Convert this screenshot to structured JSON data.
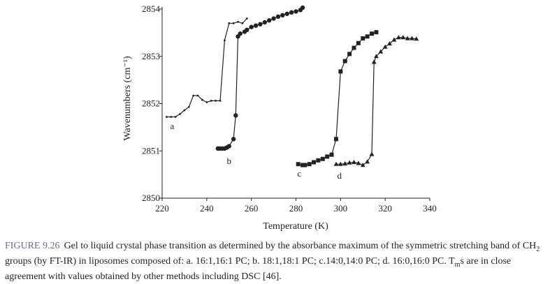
{
  "chart_data": {
    "type": "line",
    "title": "",
    "xlabel": "Temperature (K)",
    "ylabel": "Wavenumbers (cm⁻¹)",
    "xlim": [
      220,
      340
    ],
    "ylim": [
      2850,
      2854
    ],
    "xticks": [
      220,
      240,
      260,
      280,
      300,
      320,
      340
    ],
    "yticks": [
      2850,
      2851,
      2852,
      2853,
      2854
    ],
    "grid": false,
    "legend": "none",
    "series": [
      {
        "name": "a",
        "marker": "small-dot",
        "x": [
          222,
          224,
          226,
          228,
          230,
          232,
          234,
          236,
          238,
          240,
          242,
          244,
          246,
          248,
          250,
          252,
          254,
          256,
          258
        ],
        "y": [
          2851.72,
          2851.72,
          2851.72,
          2851.78,
          2851.86,
          2851.93,
          2852.17,
          2852.17,
          2852.08,
          2852.03,
          2852.06,
          2852.06,
          2852.06,
          2853.34,
          2853.7,
          2853.7,
          2853.73,
          2853.7,
          2853.8
        ]
      },
      {
        "name": "b",
        "marker": "circle",
        "x": [
          245,
          246,
          247,
          248,
          249,
          250,
          252,
          253,
          254,
          255,
          257,
          258,
          260,
          262,
          264,
          266,
          268,
          270,
          272,
          274,
          276,
          278,
          280,
          282,
          283
        ],
        "y": [
          2851.05,
          2851.05,
          2851.05,
          2851.05,
          2851.07,
          2851.1,
          2851.25,
          2851.75,
          2853.42,
          2853.48,
          2853.52,
          2853.56,
          2853.62,
          2853.65,
          2853.68,
          2853.72,
          2853.76,
          2853.8,
          2853.84,
          2853.87,
          2853.9,
          2853.93,
          2853.95,
          2853.98,
          2854.03
        ]
      },
      {
        "name": "c",
        "marker": "square",
        "x": [
          281,
          283,
          284,
          286,
          288,
          290,
          292,
          294,
          296,
          298,
          300,
          302,
          304,
          306,
          308,
          310,
          312,
          314,
          316
        ],
        "y": [
          2850.72,
          2850.7,
          2850.7,
          2850.72,
          2850.76,
          2850.8,
          2850.83,
          2850.88,
          2850.92,
          2851.25,
          2852.68,
          2852.9,
          2853.05,
          2853.18,
          2853.28,
          2853.38,
          2853.42,
          2853.48,
          2853.51
        ]
      },
      {
        "name": "d",
        "marker": "triangle",
        "x": [
          298,
          300,
          302,
          304,
          306,
          308,
          310,
          312,
          314,
          315,
          316,
          318,
          320,
          322,
          324,
          326,
          328,
          330,
          332,
          334
        ],
        "y": [
          2850.72,
          2850.72,
          2850.73,
          2850.75,
          2850.76,
          2850.74,
          2850.7,
          2850.77,
          2850.93,
          2852.88,
          2853.0,
          2853.1,
          2853.2,
          2853.27,
          2853.35,
          2853.4,
          2853.4,
          2853.38,
          2853.38,
          2853.37
        ]
      }
    ],
    "annotations": [
      {
        "text": "a",
        "x": 224.5,
        "y": 2851.52
      },
      {
        "text": "b",
        "x": 250.0,
        "y": 2850.78
      },
      {
        "text": "c",
        "x": 281.5,
        "y": 2850.52
      },
      {
        "text": "d",
        "x": 299.5,
        "y": 2850.47
      }
    ]
  },
  "caption": {
    "label": "FIGURE 9.26",
    "segments": [
      {
        "text": "Gel to liquid crystal phase transition as determined by the absorbance maximum of the symmetric stretching band of CH"
      },
      {
        "text": "2",
        "style": "sub"
      },
      {
        "text": " groups (by FT-IR) in liposomes composed of: a. 16:1,16:1 PC; b. 18:1,18:1 PC; c.14:0,14:0 PC; d. 16:0,16:0 PC. T"
      },
      {
        "text": "m",
        "style": "sub"
      },
      {
        "text": "s are in close agreement with values obtained by other methods including DSC [46]."
      }
    ]
  },
  "colors": {
    "ink": "#222222",
    "caption_label": "#6a6a9a"
  }
}
